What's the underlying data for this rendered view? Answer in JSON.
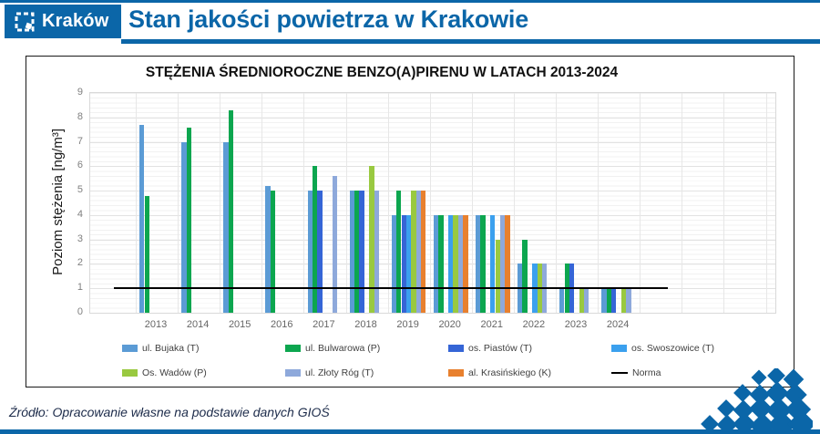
{
  "header": {
    "logo_text": "Kraków",
    "title": "Stan jakości powietrza w Krakowie",
    "brand_color": "#0b66a8"
  },
  "chart_data": {
    "type": "bar",
    "title": "STĘŻENIA ŚREDNIOROCZNE BENZO(A)PIRENU W LATACH 2013-2024",
    "xlabel": "",
    "ylabel": "Poziom stężenia [ng/m³]",
    "ylim": [
      0,
      9
    ],
    "ytick_step": 1,
    "grid": true,
    "legend_position": "bottom",
    "categories": [
      "2013",
      "2014",
      "2015",
      "2016",
      "2017",
      "2018",
      "2019",
      "2020",
      "2021",
      "2022",
      "2023",
      "2024"
    ],
    "series": [
      {
        "name": "ul. Bujaka (T)",
        "color": "#5b9bd5",
        "values": [
          7.7,
          7.0,
          7.0,
          5.2,
          5.0,
          5.0,
          4.0,
          4.0,
          4.0,
          2.0,
          1.0,
          1.0
        ]
      },
      {
        "name": "ul. Bulwarowa (P)",
        "color": "#0ca64f",
        "values": [
          4.8,
          7.6,
          8.3,
          5.0,
          6.0,
          5.0,
          5.0,
          4.0,
          4.0,
          3.0,
          2.0,
          1.0
        ]
      },
      {
        "name": "os. Piastów (T)",
        "color": "#3565d6",
        "values": [
          null,
          null,
          null,
          null,
          5.0,
          5.0,
          4.0,
          null,
          null,
          null,
          2.0,
          1.0
        ]
      },
      {
        "name": "os. Swoszowice (T)",
        "color": "#3ba0ee",
        "values": [
          null,
          null,
          null,
          null,
          null,
          null,
          4.0,
          4.0,
          4.0,
          2.0,
          null,
          null
        ]
      },
      {
        "name": "Os. Wadów (P)",
        "color": "#99c940",
        "values": [
          null,
          null,
          null,
          null,
          null,
          6.0,
          5.0,
          4.0,
          3.0,
          2.0,
          1.0,
          1.0
        ]
      },
      {
        "name": "ul. Złoty Róg (T)",
        "color": "#8ea9db",
        "values": [
          null,
          null,
          null,
          null,
          5.6,
          5.0,
          5.0,
          4.0,
          4.0,
          2.0,
          1.0,
          1.0
        ]
      },
      {
        "name": "al. Krasińskiego (K)",
        "color": "#e8802e",
        "values": [
          null,
          null,
          null,
          null,
          null,
          null,
          5.0,
          4.0,
          4.0,
          null,
          null,
          null
        ]
      }
    ],
    "norma": {
      "label": "Norma",
      "value": 1.0,
      "color": "#000000"
    }
  },
  "footer": {
    "source": "Źródło: Opracowanie własne na podstawie danych GIOŚ"
  }
}
